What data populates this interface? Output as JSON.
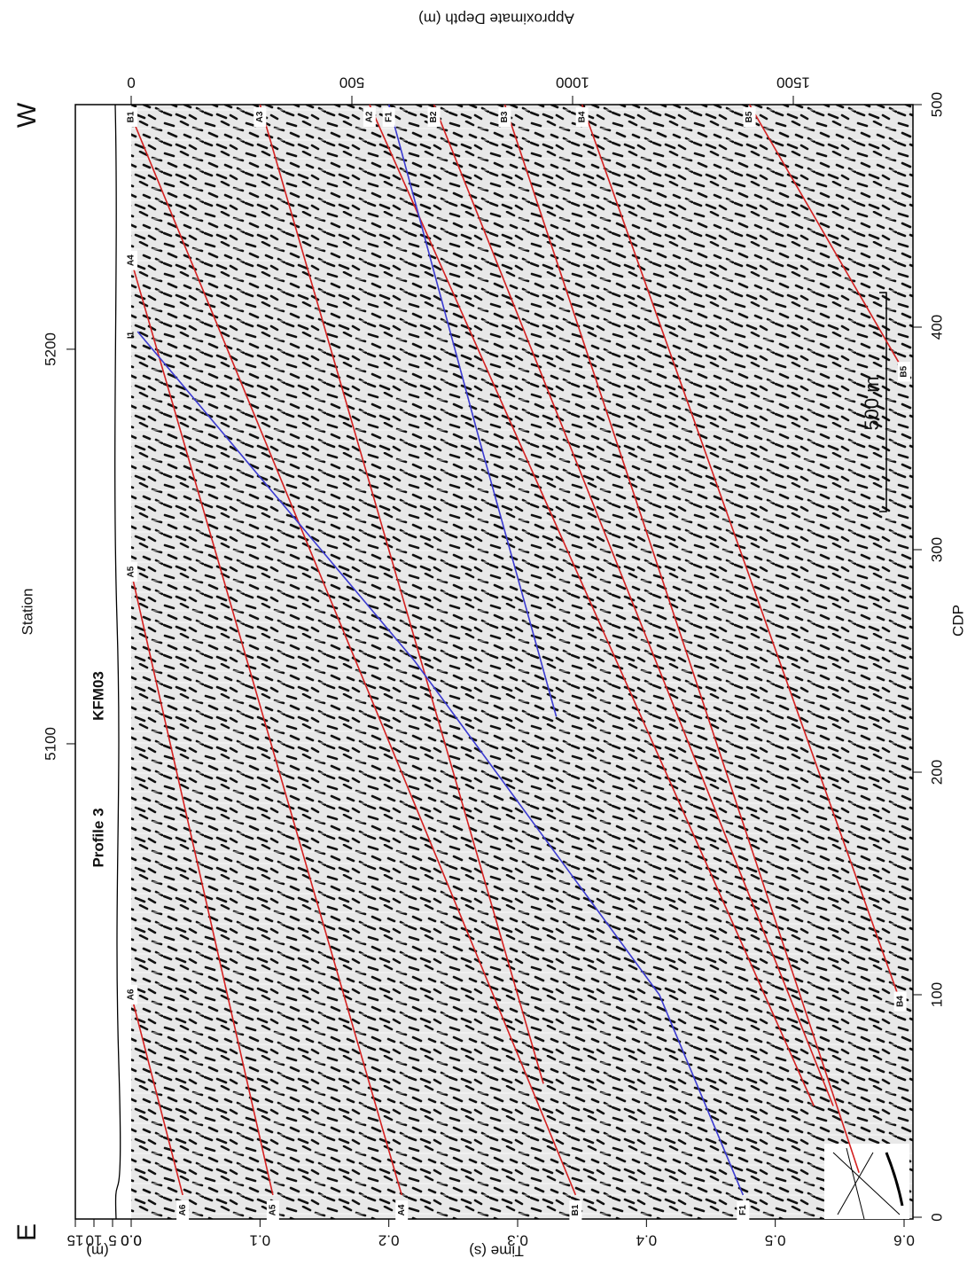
{
  "chart_data": {
    "type": "line",
    "xlabel": "CDP",
    "ylabel": "Time (s)",
    "station_label": "Station",
    "depth_label": "Approximate Depth (m)",
    "elevation_label": "(m)",
    "annotations": {
      "west": "W",
      "east": "E",
      "profile": "Profile 3",
      "borehole": "KFM03",
      "scale": "500 m",
      "zone": "I1"
    },
    "xlim": [
      0,
      500
    ],
    "xticks": [
      0,
      100,
      200,
      300,
      400,
      500
    ],
    "ylim": [
      0,
      0.6
    ],
    "yticks": [
      {
        "value": 0,
        "label": "0.0"
      },
      0.1,
      0.2,
      0.3,
      0.4,
      0.5,
      0.6
    ],
    "station_lim": [
      4980,
      5262
    ],
    "station_ticks": [
      5100,
      5200
    ],
    "depth_lim": [
      0,
      1751
    ],
    "depth_ticks": [
      0,
      500,
      1000,
      1500
    ],
    "elevation_lim": [
      0,
      15
    ],
    "elevation_ticks": [
      {
        "value": 0,
        "label": "0.0"
      },
      5,
      10,
      15
    ],
    "series": [
      {
        "name": "A6",
        "color": "#d42020",
        "x": [
          10,
          100
        ],
        "values": [
          0.04,
          0.0
        ]
      },
      {
        "name": "A5",
        "color": "#d42020",
        "x": [
          10,
          290
        ],
        "values": [
          0.11,
          0.0
        ]
      },
      {
        "name": "A4",
        "color": "#d42020",
        "x": [
          10,
          430
        ],
        "values": [
          0.21,
          0.0
        ]
      },
      {
        "name": "B1",
        "color": "#d42020",
        "x": [
          10,
          495
        ],
        "values": [
          0.345,
          0.0
        ]
      },
      {
        "name": "A3",
        "color": "#d42020",
        "x": [
          60,
          500
        ],
        "values": [
          0.32,
          0.1
        ]
      },
      {
        "name": "A2",
        "color": "#d42020",
        "x": [
          50,
          500
        ],
        "values": [
          0.53,
          0.185
        ]
      },
      {
        "name": "B2",
        "color": "#d42020",
        "x": [
          50,
          500
        ],
        "values": [
          0.545,
          0.235
        ]
      },
      {
        "name": "B3",
        "color": "#d42020",
        "x": [
          20,
          500
        ],
        "values": [
          0.565,
          0.29
        ]
      },
      {
        "name": "B4",
        "color": "#d42020",
        "x": [
          97,
          500
        ],
        "values": [
          0.597,
          0.35
        ]
      },
      {
        "name": "B5",
        "color": "#d42020",
        "x": [
          380,
          500
        ],
        "values": [
          0.6,
          0.48
        ]
      },
      {
        "name": "F1",
        "color": "#3a3ad0",
        "x": [
          10,
          100,
          250,
          398
        ],
        "values": [
          0.475,
          0.41,
          0.22,
          0.005
        ]
      },
      {
        "name": "F1",
        "color": "#3a3ad0",
        "x": [
          225,
          350,
          500
        ],
        "values": [
          0.33,
          0.27,
          0.2
        ]
      }
    ]
  }
}
